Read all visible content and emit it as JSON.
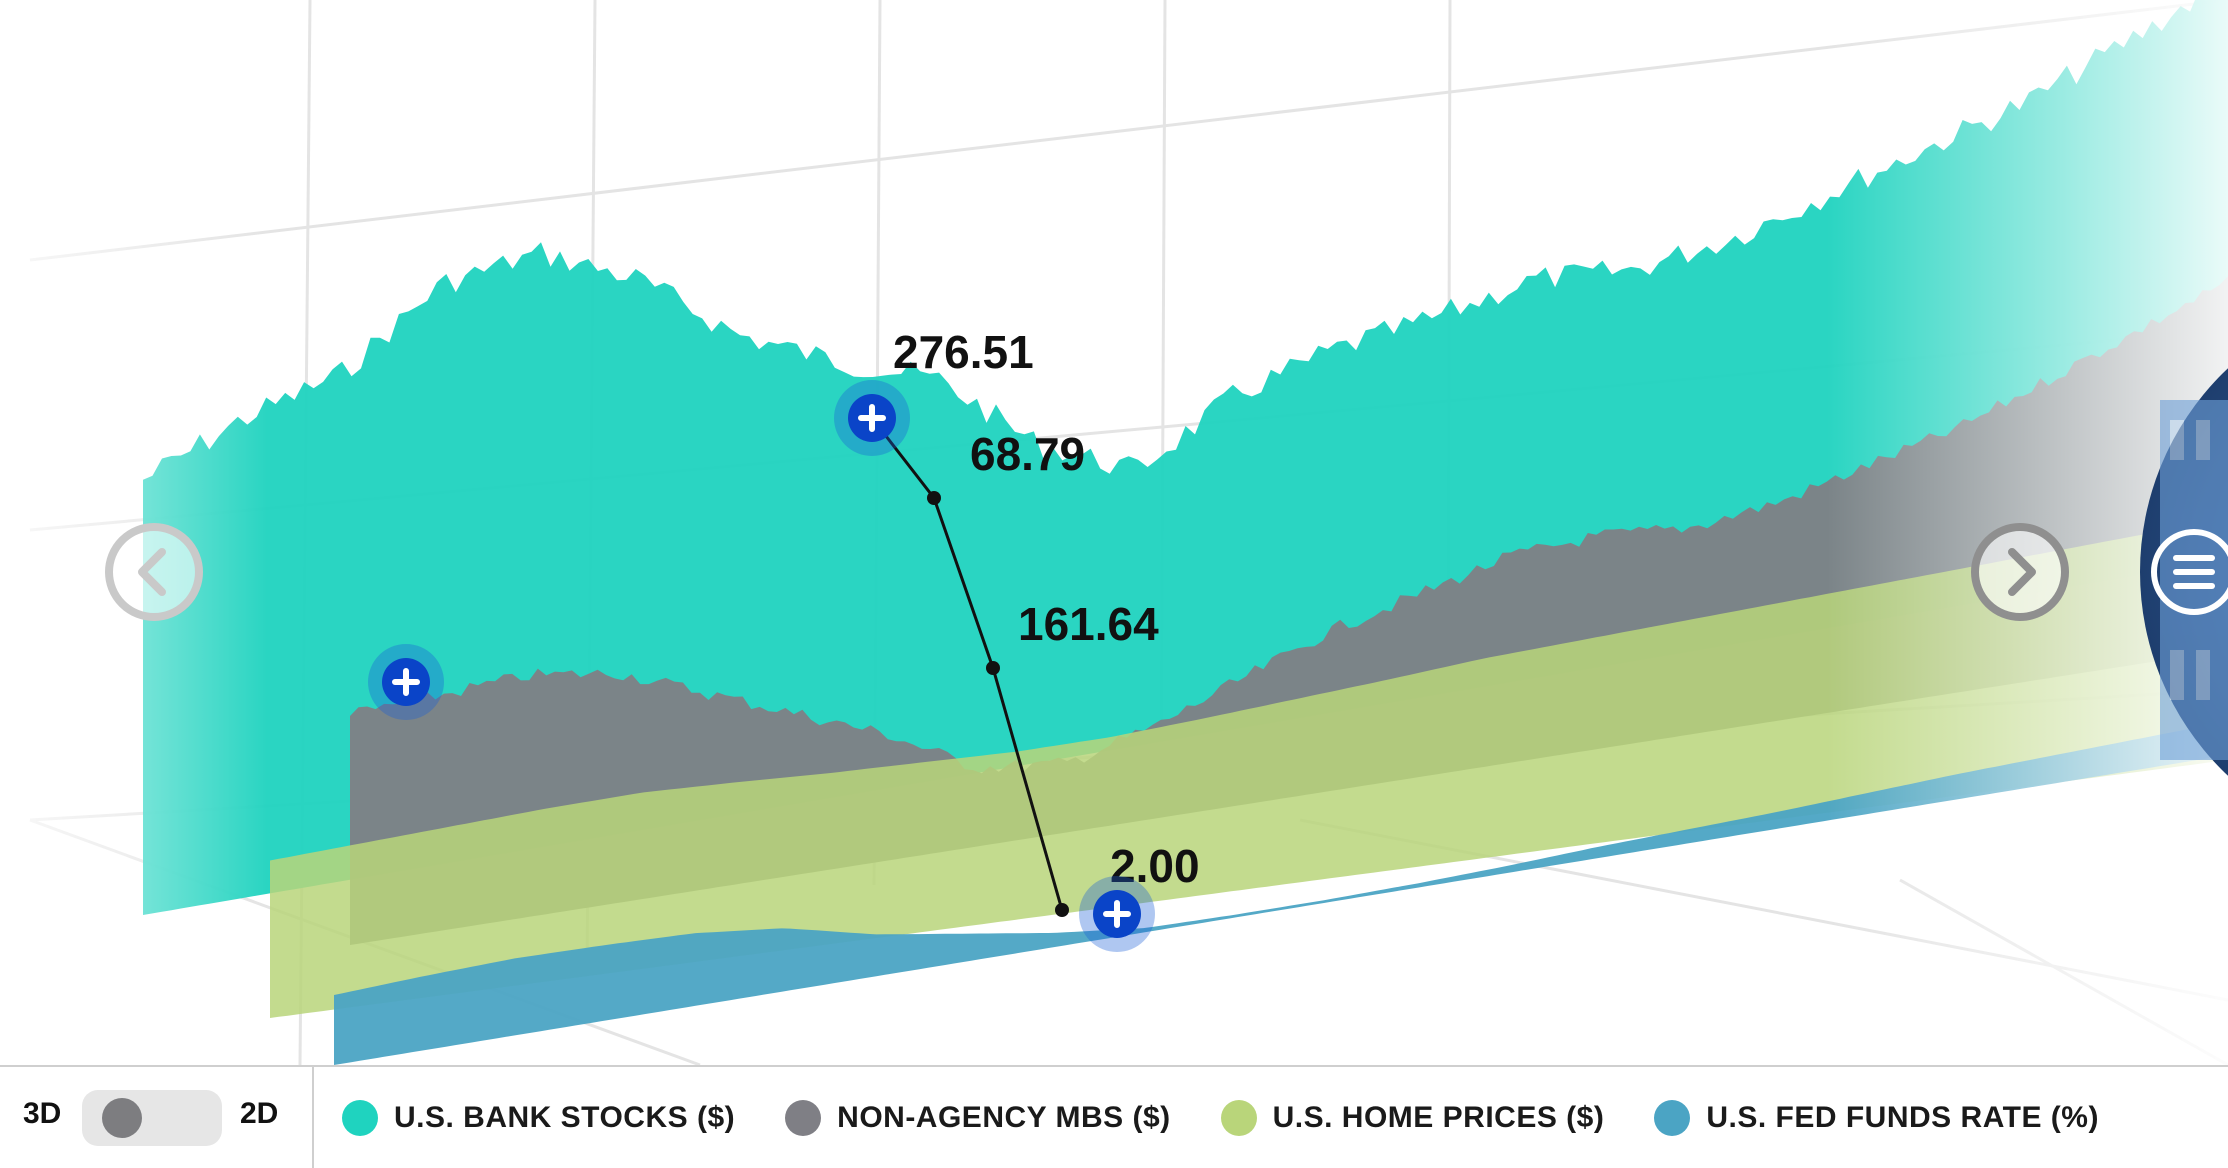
{
  "chart_data": {
    "type": "area",
    "view": "3d",
    "series": [
      {
        "name": "U.S. BANK STOCKS ($)",
        "color": "#1fd3bf",
        "values": [
          300,
          330,
          350,
          400,
          410,
          380,
          330,
          300,
          276.51,
          220,
          190,
          230,
          250,
          260,
          275,
          270,
          280,
          300,
          320,
          340,
          370,
          400
        ]
      },
      {
        "name": "NON-AGENCY MBS ($)",
        "color": "#7f7f85",
        "values": [
          200,
          205,
          210,
          200,
          170,
          140,
          110,
          68.79,
          60,
          80,
          110,
          140,
          160,
          180,
          185,
          180,
          190,
          210,
          230,
          260,
          290,
          320
        ]
      },
      {
        "name": "U.S. HOME PRICES ($)",
        "color": "#b9d57a",
        "values": [
          150,
          155,
          160,
          165,
          168,
          166,
          163,
          161.64,
          160,
          162,
          168,
          175,
          182,
          190,
          195,
          200,
          205,
          210,
          215,
          220,
          225,
          230
        ]
      },
      {
        "name": "U.S. FED FUNDS RATE (%)",
        "color": "#4ba4c4",
        "values": [
          5.0,
          5.3,
          5.5,
          5.4,
          5.2,
          4.5,
          3.0,
          2.0,
          1.0,
          0.3,
          0.2,
          0.2,
          0.3,
          0.5,
          0.8,
          1.0,
          1.2,
          1.5,
          1.8,
          2.0,
          2.2,
          2.4
        ]
      }
    ],
    "callouts": [
      {
        "series": "U.S. BANK STOCKS ($)",
        "text": "276.51"
      },
      {
        "series": "NON-AGENCY MBS ($)",
        "text": "68.79"
      },
      {
        "series": "U.S. HOME PRICES ($)",
        "text": "161.64"
      },
      {
        "series": "U.S. FED FUNDS RATE (%)",
        "text": "2.00"
      }
    ],
    "grid": true
  },
  "toggle": {
    "left_label": "3D",
    "right_label": "2D",
    "selected": "3D"
  },
  "legend": [
    {
      "label": "U.S. BANK STOCKS ($)",
      "color": "#1fd3bf"
    },
    {
      "label": "NON-AGENCY MBS ($)",
      "color": "#7f7f85"
    },
    {
      "label": "U.S. HOME PRICES ($)",
      "color": "#b9d57a"
    },
    {
      "label": "U.S. FED FUNDS RATE (%)",
      "color": "#4ba4c4"
    }
  ],
  "icons": {
    "prev": "chevron-left-icon",
    "next": "chevron-right-icon",
    "menu": "menu-icon",
    "add": "plus-icon"
  }
}
